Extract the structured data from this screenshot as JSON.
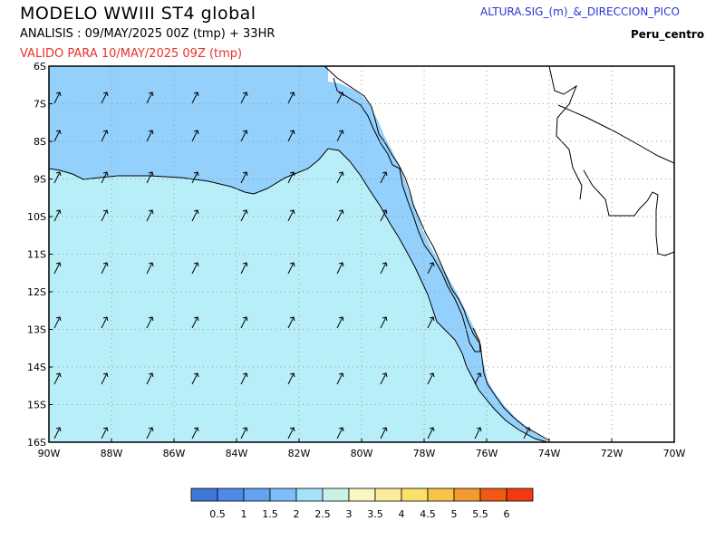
{
  "header": {
    "title": "MODELO WWIII ST4 global",
    "analysis": "ANALISIS : 09/MAY/2025 00Z (tmp) + 33HR",
    "valid": "VALIDO PARA 10/MAY/2025 09Z (tmp)",
    "variable": "ALTURA.SIG_(m)_&_DIRECCION_PICO",
    "region": "Peru_centro"
  },
  "axes": {
    "lat_labels": [
      "6S",
      "7S",
      "8S",
      "9S",
      "10S",
      "11S",
      "12S",
      "13S",
      "14S",
      "15S",
      "16S"
    ],
    "lon_labels": [
      "90W",
      "88W",
      "86W",
      "84W",
      "82W",
      "80W",
      "78W",
      "76W",
      "74W",
      "72W",
      "70W"
    ]
  },
  "colorbar": {
    "labels": [
      "0.5",
      "1",
      "1.5",
      "2",
      "2.5",
      "3",
      "3.5",
      "4",
      "4.5",
      "5",
      "5.5",
      "6"
    ],
    "colors": [
      "#3f77d8",
      "#4f8ae6",
      "#62a2f0",
      "#7dbef8",
      "#a4e2fa",
      "#c9f2e6",
      "#fbf7c5",
      "#fbec9c",
      "#fbe06a",
      "#f8c44c",
      "#f59a2e",
      "#f05a14",
      "#f23a0e"
    ]
  },
  "map_colors": {
    "zone_1_5_2": "#93d0fb",
    "zone_2_2_5": "#b8eef8",
    "land": "#ffffff"
  }
}
